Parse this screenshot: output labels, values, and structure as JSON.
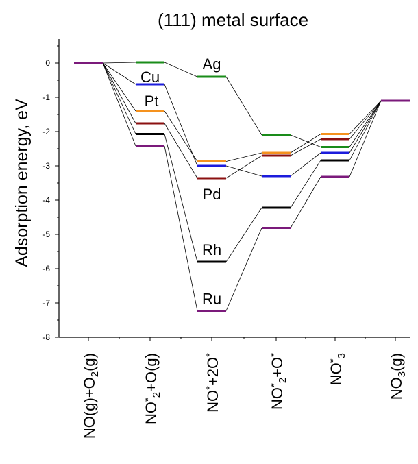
{
  "chart_data": {
    "type": "line",
    "title": "(111) metal surface",
    "ylabel": "Adsorption energy, eV",
    "ylim": [
      -8,
      0.7
    ],
    "yticks": [
      0,
      -1,
      -2,
      -3,
      -4,
      -5,
      -6,
      -7,
      -8
    ],
    "categories": [
      {
        "base": "NO(g)+O",
        "sub": "2",
        "tail": "(g)"
      },
      {
        "base": "NO",
        "sup": "*",
        "mid": "+O",
        "sub": "2",
        "tail": "(g)"
      },
      {
        "base": "NO",
        "sup": "*",
        "mid": "+2O",
        "sup2": "*"
      },
      {
        "base": "NO",
        "sub": "2",
        "sup": "*",
        "mid": "+O",
        "sup2": "*"
      },
      {
        "base": "NO",
        "sup": "*",
        "sub": "3"
      },
      {
        "base": "NO",
        "sub": "3",
        "tail": "(g)"
      }
    ],
    "series": [
      {
        "name": "Ag",
        "color": "#1a8c1a",
        "values": [
          0.0,
          0.02,
          -0.4,
          -2.1,
          -2.45,
          -1.1
        ]
      },
      {
        "name": "Cu",
        "color": "#1c1cdc",
        "values": [
          0.0,
          -0.62,
          -3.0,
          -3.3,
          -2.62,
          -1.1
        ]
      },
      {
        "name": "Pt",
        "color": "#f5921e",
        "values": [
          0.0,
          -1.4,
          -2.87,
          -2.62,
          -2.07,
          -1.1
        ]
      },
      {
        "name": "Pd",
        "color": "#8b1010",
        "values": [
          0.0,
          -1.76,
          -3.36,
          -2.7,
          -2.22,
          -1.1
        ]
      },
      {
        "name": "Rh",
        "color": "#000000",
        "values": [
          0.0,
          -2.07,
          -5.8,
          -4.22,
          -2.84,
          -1.1
        ]
      },
      {
        "name": "Ru",
        "color": "#7b1a7b",
        "values": [
          0.0,
          -2.42,
          -7.23,
          -4.81,
          -3.32,
          -1.1
        ]
      }
    ]
  }
}
